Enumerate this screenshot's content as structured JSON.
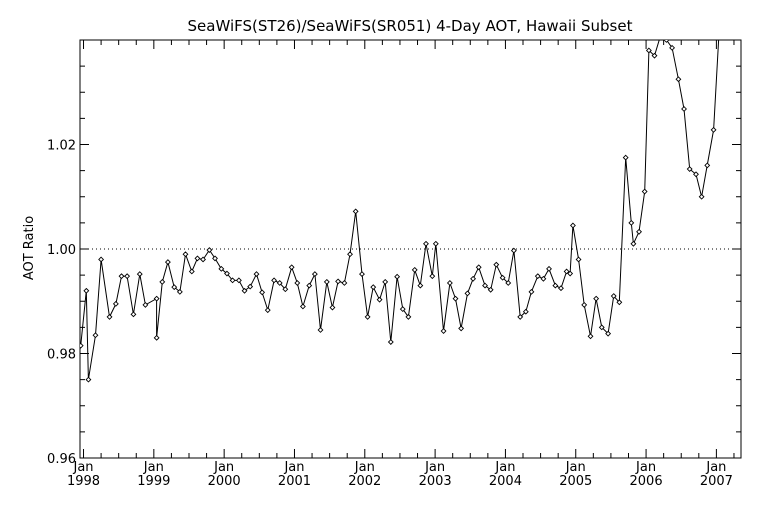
{
  "chart_data": {
    "type": "line",
    "title": "SeaWiFS(ST26)/SeaWiFS(SR051) 4-Day AOT, Hawaii Subset",
    "xlabel": "",
    "ylabel": "AOT Ratio",
    "xlim": [
      1997.95,
      2007.35
    ],
    "ylim": [
      0.96,
      1.04
    ],
    "y_ticks": [
      0.96,
      0.98,
      1.0,
      1.02
    ],
    "y_tick_labels": [
      "0.96",
      "0.98",
      "1.00",
      "1.02"
    ],
    "x_ticks": [
      {
        "month": "Jan",
        "year": "1998",
        "x": 1998.0
      },
      {
        "month": "Jan",
        "year": "1999",
        "x": 1999.0
      },
      {
        "month": "Jan",
        "year": "2000",
        "x": 2000.0
      },
      {
        "month": "Jan",
        "year": "2001",
        "x": 2001.0
      },
      {
        "month": "Jan",
        "year": "2002",
        "x": 2002.0
      },
      {
        "month": "Jan",
        "year": "2003",
        "x": 2003.0
      },
      {
        "month": "Jan",
        "year": "2004",
        "x": 2004.0
      },
      {
        "month": "Jan",
        "year": "2005",
        "x": 2005.0
      },
      {
        "month": "Jan",
        "year": "2006",
        "x": 2006.0
      },
      {
        "month": "Jan",
        "year": "2007",
        "x": 2007.0
      }
    ],
    "reference_line": {
      "y": 1.0,
      "style": "dotted"
    },
    "grid": false,
    "series": [
      {
        "marker": "diamond",
        "color": "#000000",
        "points": [
          [
            1997.96,
            0.9815
          ],
          [
            1998.04,
            0.992
          ],
          [
            1998.07,
            0.975
          ],
          [
            1998.17,
            0.9835
          ],
          [
            1998.25,
            0.998
          ],
          [
            1998.37,
            0.987
          ],
          [
            1998.46,
            0.9895
          ],
          [
            1998.54,
            0.9948
          ],
          [
            1998.62,
            0.9948
          ],
          [
            1998.71,
            0.9875
          ],
          [
            1998.8,
            0.9952
          ],
          [
            1998.88,
            0.9893
          ],
          [
            1999.04,
            0.9905
          ],
          [
            1999.04,
            0.983
          ],
          [
            1999.12,
            0.9937
          ],
          [
            1999.2,
            0.9975
          ],
          [
            1999.29,
            0.9927
          ],
          [
            1999.37,
            0.9918
          ],
          [
            1999.45,
            0.999
          ],
          [
            1999.54,
            0.9957
          ],
          [
            1999.62,
            0.9982
          ],
          [
            1999.7,
            0.998
          ],
          [
            1999.79,
            0.9998
          ],
          [
            1999.87,
            0.9982
          ],
          [
            1999.96,
            0.9962
          ],
          [
            2000.04,
            0.9953
          ],
          [
            2000.12,
            0.994
          ],
          [
            2000.21,
            0.994
          ],
          [
            2000.29,
            0.992
          ],
          [
            2000.37,
            0.9928
          ],
          [
            2000.46,
            0.9952
          ],
          [
            2000.54,
            0.9917
          ],
          [
            2000.62,
            0.9883
          ],
          [
            2000.71,
            0.994
          ],
          [
            2000.79,
            0.9935
          ],
          [
            2000.87,
            0.9923
          ],
          [
            2000.96,
            0.9965
          ],
          [
            2001.04,
            0.9935
          ],
          [
            2001.12,
            0.989
          ],
          [
            2001.21,
            0.993
          ],
          [
            2001.29,
            0.9952
          ],
          [
            2001.37,
            0.9845
          ],
          [
            2001.46,
            0.9937
          ],
          [
            2001.54,
            0.9888
          ],
          [
            2001.62,
            0.9938
          ],
          [
            2001.71,
            0.9935
          ],
          [
            2001.79,
            0.999
          ],
          [
            2001.87,
            1.0072
          ],
          [
            2001.96,
            0.9952
          ],
          [
            2002.04,
            0.987
          ],
          [
            2002.12,
            0.9927
          ],
          [
            2002.21,
            0.9903
          ],
          [
            2002.29,
            0.9937
          ],
          [
            2002.37,
            0.9822
          ],
          [
            2002.46,
            0.9947
          ],
          [
            2002.54,
            0.9885
          ],
          [
            2002.62,
            0.987
          ],
          [
            2002.71,
            0.996
          ],
          [
            2002.79,
            0.993
          ],
          [
            2002.87,
            1.001
          ],
          [
            2002.96,
            0.9948
          ],
          [
            2003.01,
            1.001
          ],
          [
            2003.12,
            0.9843
          ],
          [
            2003.21,
            0.9935
          ],
          [
            2003.29,
            0.9905
          ],
          [
            2003.37,
            0.9848
          ],
          [
            2003.46,
            0.9915
          ],
          [
            2003.54,
            0.9943
          ],
          [
            2003.62,
            0.9965
          ],
          [
            2003.71,
            0.993
          ],
          [
            2003.79,
            0.9922
          ],
          [
            2003.87,
            0.997
          ],
          [
            2003.96,
            0.9945
          ],
          [
            2004.04,
            0.9935
          ],
          [
            2004.12,
            0.9997
          ],
          [
            2004.21,
            0.987
          ],
          [
            2004.29,
            0.988
          ],
          [
            2004.37,
            0.9918
          ],
          [
            2004.46,
            0.9948
          ],
          [
            2004.54,
            0.9943
          ],
          [
            2004.62,
            0.9962
          ],
          [
            2004.71,
            0.993
          ],
          [
            2004.79,
            0.9925
          ],
          [
            2004.87,
            0.9957
          ],
          [
            2004.92,
            0.9953
          ],
          [
            2004.96,
            1.0045
          ],
          [
            2005.04,
            0.998
          ],
          [
            2005.12,
            0.9893
          ],
          [
            2005.21,
            0.9833
          ],
          [
            2005.29,
            0.9905
          ],
          [
            2005.37,
            0.985
          ],
          [
            2005.46,
            0.9838
          ],
          [
            2005.54,
            0.991
          ],
          [
            2005.62,
            0.9898
          ],
          [
            2005.71,
            1.0175
          ],
          [
            2005.79,
            1.005
          ],
          [
            2005.82,
            1.001
          ],
          [
            2005.9,
            1.0033
          ],
          [
            2005.98,
            1.011
          ],
          [
            2006.04,
            1.038
          ],
          [
            2006.12,
            1.037
          ],
          [
            2006.21,
            1.041
          ],
          [
            2006.29,
            1.04
          ],
          [
            2006.37,
            1.0385
          ],
          [
            2006.46,
            1.0325
          ],
          [
            2006.54,
            1.0268
          ],
          [
            2006.62,
            1.0153
          ],
          [
            2006.71,
            1.0143
          ],
          [
            2006.79,
            1.01
          ],
          [
            2006.87,
            1.016
          ],
          [
            2006.96,
            1.0228
          ],
          [
            2007.04,
            1.042
          ]
        ]
      }
    ]
  }
}
